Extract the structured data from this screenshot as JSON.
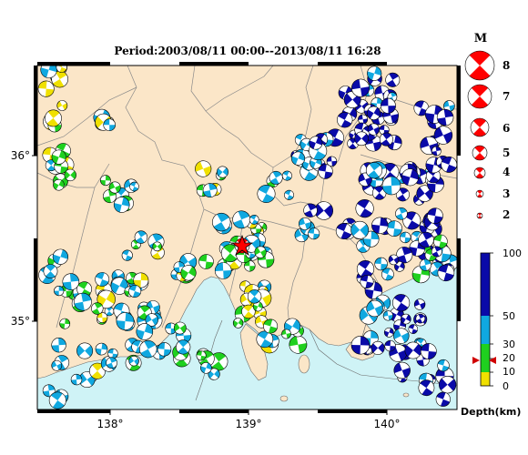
{
  "title": "Period:2003/08/11 00:00--2013/08/11 16:28",
  "map": {
    "lon_ticks": [
      "138°",
      "139°",
      "140°"
    ],
    "lat_ticks": [
      "36°",
      "35°"
    ],
    "land_color": "#fbe6c8",
    "sea_color": "#cff3f6"
  },
  "magnitude_legend": {
    "title": "M",
    "items": [
      "8",
      "7",
      "6",
      "5",
      "4",
      "3",
      "2"
    ]
  },
  "depth_scale": {
    "title": "Depth(km)",
    "labels": [
      "100",
      "50",
      "30",
      "20",
      "10",
      "0"
    ],
    "colors": {
      "deep": "#0a0aa8",
      "mid": "#10a8e0",
      "shallow_mid": "#1fd01f",
      "shallow": "#f0e000"
    }
  },
  "markers": {
    "mainshock_icon": "red-star-icon",
    "depth_pointer_icon": "red-bowtie-icon",
    "mainshock_color": "#ff0000"
  }
}
